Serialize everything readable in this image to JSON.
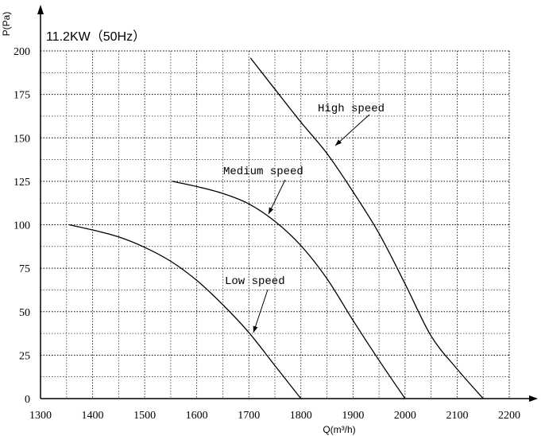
{
  "chart_data": {
    "type": "line",
    "title": "11.2KW（50Hz）",
    "xlabel": "Q(m³/h)",
    "ylabel": "P(Pa)",
    "xlim": [
      1300,
      2200
    ],
    "ylim": [
      0,
      200
    ],
    "x_ticks": [
      1300,
      1400,
      1500,
      1600,
      1700,
      1800,
      1900,
      2000,
      2100,
      2200
    ],
    "y_ticks": [
      0,
      25,
      50,
      75,
      100,
      125,
      150,
      175,
      200
    ],
    "grid": "dotted, minor every 50 m³/h and 12.5 Pa",
    "series": [
      {
        "name": "Low speed",
        "x": [
          1355,
          1400,
          1450,
          1500,
          1550,
          1600,
          1650,
          1700,
          1750,
          1800
        ],
        "y": [
          100,
          97,
          93,
          87,
          79,
          68,
          54,
          38,
          19,
          0
        ]
      },
      {
        "name": "Medium speed",
        "x": [
          1553,
          1600,
          1650,
          1700,
          1750,
          1800,
          1850,
          1900,
          1950,
          2000
        ],
        "y": [
          125,
          122,
          118,
          112,
          102,
          88,
          69,
          45,
          22,
          0
        ]
      },
      {
        "name": "High speed",
        "x": [
          1703,
          1750,
          1800,
          1850,
          1900,
          1950,
          2000,
          2050,
          2100,
          2150
        ],
        "y": [
          196,
          178,
          159,
          141,
          119,
          95,
          66,
          36,
          17,
          0
        ]
      }
    ]
  }
}
